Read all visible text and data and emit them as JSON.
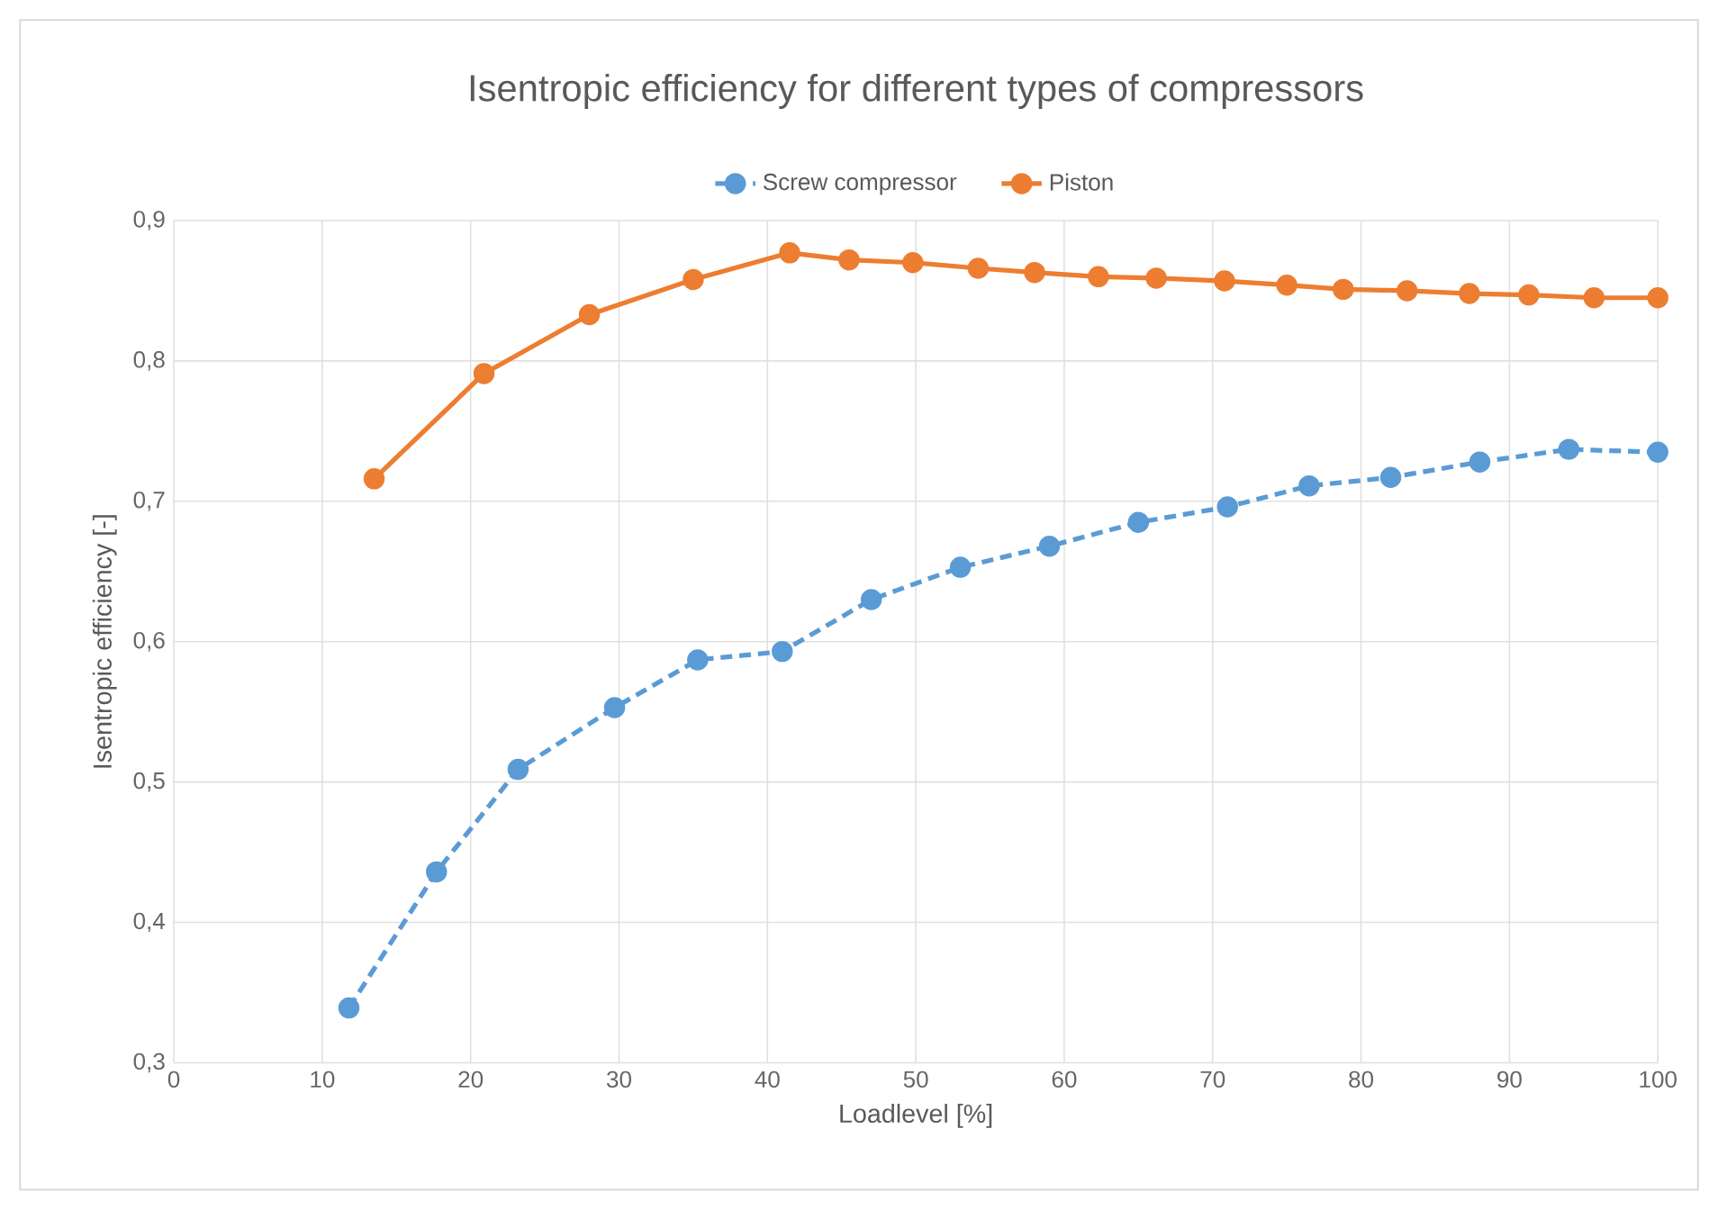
{
  "chart_data": {
    "type": "line",
    "title": "Isentropic efficiency for different types of compressors",
    "xlabel": "Loadlevel [%]",
    "ylabel": "Isentropic efficiency [-]",
    "xlim": [
      0,
      100
    ],
    "xticks": [
      0,
      10,
      20,
      30,
      40,
      50,
      60,
      70,
      80,
      90,
      100
    ],
    "ylim": [
      0.3,
      0.9
    ],
    "yticks": [
      {
        "value": 0.3,
        "label": "0,3"
      },
      {
        "value": 0.4,
        "label": "0,4"
      },
      {
        "value": 0.5,
        "label": "0,5"
      },
      {
        "value": 0.6,
        "label": "0,6"
      },
      {
        "value": 0.7,
        "label": "0,7"
      },
      {
        "value": 0.8,
        "label": "0,8"
      },
      {
        "value": 0.9,
        "label": "0,9"
      }
    ],
    "grid": true,
    "legend": "top",
    "marker": "circle",
    "series": [
      {
        "name": "Screw compressor",
        "color": "#5b9bd5",
        "line_style": "dashed",
        "x": [
          11.8,
          17.7,
          23.2,
          29.7,
          35.3,
          41,
          47,
          53,
          59,
          65,
          71,
          76.5,
          82,
          88,
          94,
          100
        ],
        "values": [
          0.339,
          0.436,
          0.509,
          0.553,
          0.587,
          0.593,
          0.63,
          0.653,
          0.668,
          0.685,
          0.696,
          0.711,
          0.717,
          0.728,
          0.737,
          0.735
        ]
      },
      {
        "name": "Piston",
        "color": "#ed7d31",
        "line_style": "solid",
        "x": [
          13.5,
          20.9,
          28,
          35,
          41.5,
          45.5,
          49.8,
          54.2,
          58,
          62.3,
          66.2,
          70.8,
          75,
          78.8,
          83.1,
          87.3,
          91.3,
          95.7,
          100
        ],
        "values": [
          0.716,
          0.791,
          0.833,
          0.858,
          0.877,
          0.872,
          0.87,
          0.866,
          0.863,
          0.86,
          0.859,
          0.857,
          0.854,
          0.851,
          0.85,
          0.848,
          0.847,
          0.845,
          0.845
        ]
      }
    ]
  }
}
